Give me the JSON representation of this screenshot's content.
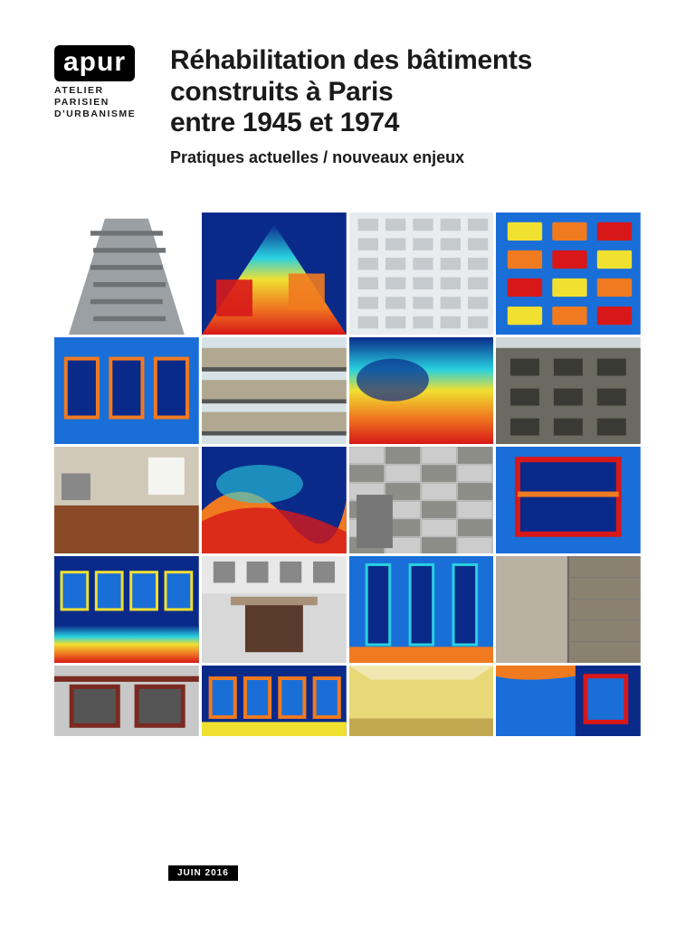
{
  "logo": {
    "brand": "apur",
    "sub_line1": "ATELIER PARISIEN",
    "sub_line2": "D'URBANISME"
  },
  "title": {
    "line1": "Réhabilitation des bâtiments",
    "line2": "construits à Paris",
    "line3": "entre 1945 et 1974"
  },
  "subtitle": "Pratiques actuelles / nouveaux enjeux",
  "date_badge": "JUIN 2016",
  "thermal_palette": {
    "cold": "#0a2a8a",
    "cool": "#1a6ed8",
    "cyan": "#28d0e0",
    "warm": "#f0e030",
    "hot": "#f07a20",
    "vhot": "#d81818"
  },
  "grid": {
    "rows": [
      {
        "height_class": "row-tall",
        "cells": [
          {
            "type": "photo",
            "variant": "grey-building-angular",
            "bg": "#ffffff",
            "tone": "#9aa0a4"
          },
          {
            "type": "thermal",
            "variant": "corner-up"
          },
          {
            "type": "photo",
            "variant": "white-facade",
            "bg": "#e8ecef",
            "tone": "#c4cacd"
          },
          {
            "type": "thermal",
            "variant": "balconies"
          }
        ]
      },
      {
        "height_class": "row-med",
        "cells": [
          {
            "type": "thermal",
            "variant": "windows-blue"
          },
          {
            "type": "photo",
            "variant": "beige-balconies",
            "bg": "#d6e2e6",
            "tone": "#b0a890"
          },
          {
            "type": "thermal",
            "variant": "blue-wash"
          },
          {
            "type": "photo",
            "variant": "dark-stone",
            "bg": "#cfd6da",
            "tone": "#6a6a60"
          }
        ]
      },
      {
        "height_class": "row-med",
        "cells": [
          {
            "type": "photo",
            "variant": "interior-kitchen",
            "bg": "#8a4a28",
            "tone": "#d0c8b8"
          },
          {
            "type": "thermal",
            "variant": "abstract-blue"
          },
          {
            "type": "photo",
            "variant": "grey-cladding",
            "bg": "#cccccc",
            "tone": "#8d8d88"
          },
          {
            "type": "thermal",
            "variant": "window-frame"
          }
        ]
      },
      {
        "height_class": "row-med",
        "cells": [
          {
            "type": "thermal",
            "variant": "lower-blue"
          },
          {
            "type": "photo",
            "variant": "entrance",
            "bg": "#d8d8d8",
            "tone": "#a89078"
          },
          {
            "type": "thermal",
            "variant": "vertical-blue"
          },
          {
            "type": "photo",
            "variant": "concrete-panel",
            "bg": "#b8b0a0",
            "tone": "#8a8270"
          }
        ]
      },
      {
        "height_class": "row-short",
        "cells": [
          {
            "type": "photo",
            "variant": "red-windows",
            "bg": "#c8c8c8",
            "tone": "#7a2a20"
          },
          {
            "type": "thermal",
            "variant": "row-windows"
          },
          {
            "type": "photo",
            "variant": "yellow-room",
            "bg": "#e8d878",
            "tone": "#f0e8b0"
          },
          {
            "type": "thermal",
            "variant": "corner-room"
          }
        ]
      }
    ]
  }
}
